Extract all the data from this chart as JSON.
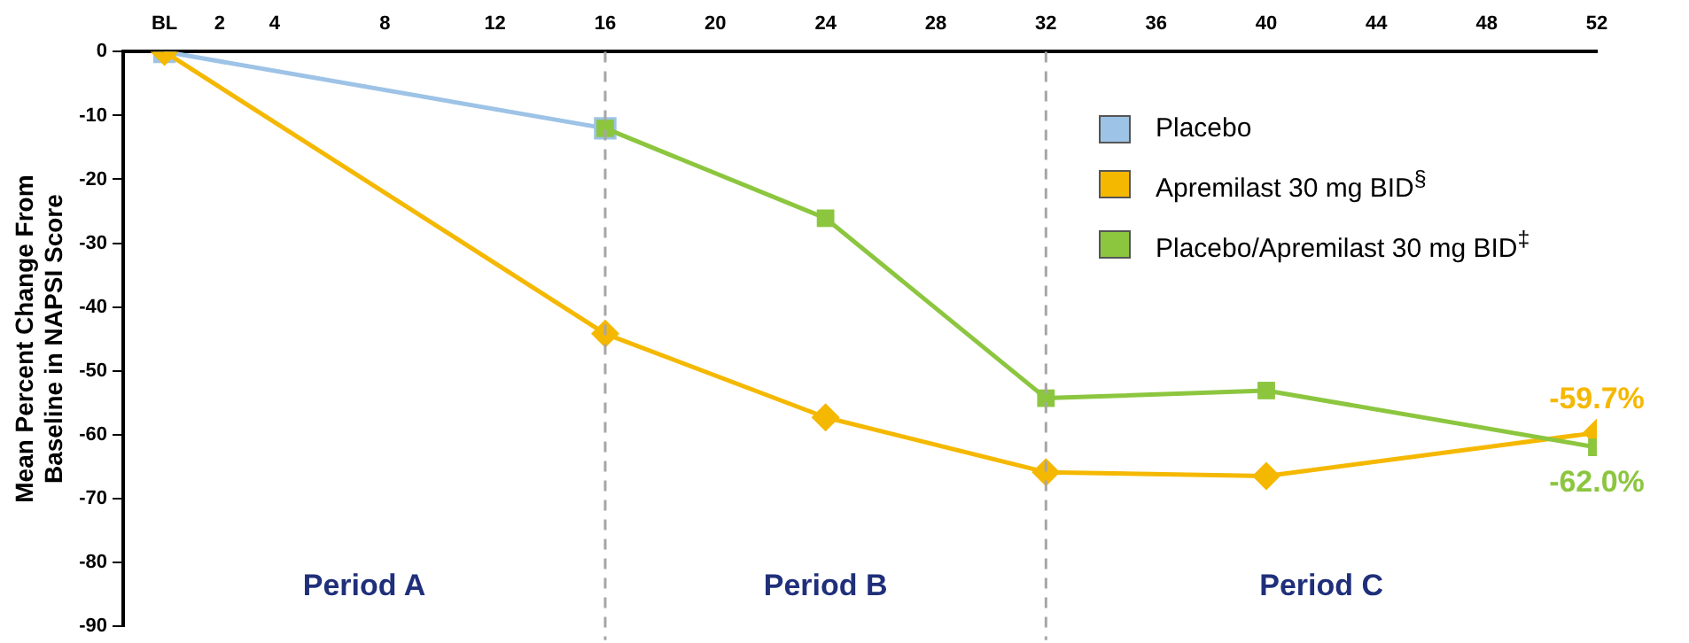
{
  "chart_data": {
    "type": "line",
    "ylabel": "Mean Percent Change From\nBaseline in NAPSI Score",
    "xlim": [
      -1.5,
      52
    ],
    "xticks": [
      {
        "value": 0,
        "label": "BL"
      },
      2,
      4,
      8,
      12,
      16,
      20,
      24,
      28,
      32,
      36,
      40,
      44,
      48,
      52
    ],
    "ylim": [
      -90,
      0
    ],
    "yticks": [
      0,
      -10,
      -20,
      -30,
      -40,
      -50,
      -60,
      -70,
      -80,
      -90
    ],
    "grid": false,
    "legend": "top right",
    "series": [
      {
        "name": "Placebo",
        "color": "#9dc3e6",
        "marker": "square",
        "x": [
          0,
          16
        ],
        "values": [
          0,
          -12
        ]
      },
      {
        "name": "Apremilast 30 mg BID$^{§}$",
        "color": "#f5b800",
        "marker": "diamond",
        "x": [
          0,
          16,
          24,
          32,
          40,
          52
        ],
        "values": [
          0,
          -44.2,
          -57.3,
          -65.9,
          -66.5,
          -59.7
        ],
        "value_labels": [
          null,
          null,
          null,
          null,
          null,
          "-59.7%"
        ]
      },
      {
        "name": "Placebo/Apremilast 30 mg BID$^{‡}$",
        "color": "#8cc63f",
        "marker": "square",
        "x": [
          16,
          24,
          32,
          40,
          52
        ],
        "values": [
          -12,
          -26.1,
          -54.3,
          -53.1,
          -62.0
        ],
        "value_labels": [
          null,
          null,
          null,
          null,
          "-62.0%"
        ]
      }
    ],
    "ref_lines": [
      {
        "axis": "x",
        "value": 16,
        "color": "#a6a6a6",
        "line_style": "dashed"
      },
      {
        "axis": "x",
        "value": 32,
        "color": "#a6a6a6",
        "line_style": "dashed"
      }
    ],
    "annotations": [
      "Period A",
      "Period B",
      "Period C"
    ]
  }
}
